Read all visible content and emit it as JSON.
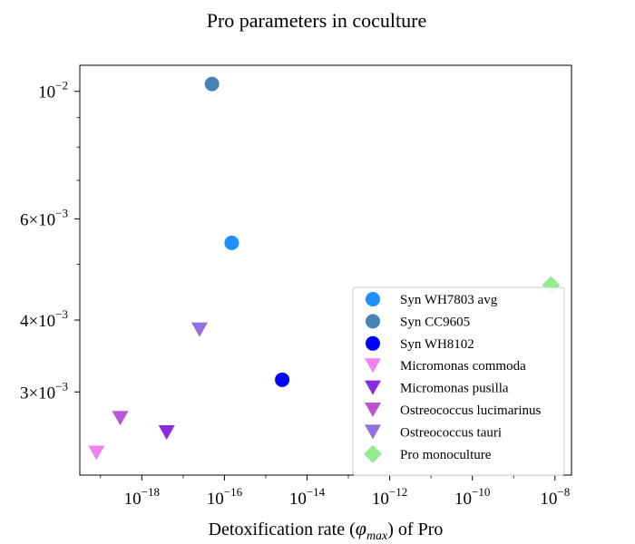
{
  "chart_data": {
    "type": "scatter",
    "title": "Pro parameters in coculture",
    "xlabel": {
      "prefix": "Detoxification rate (",
      "symbol": "φ",
      "subscript": "max",
      "suffix": ") of Pro"
    },
    "ylabel": "",
    "x_scale": "log",
    "y_scale": "log",
    "xlim_exponent": [
      -19.5,
      -7.6
    ],
    "ylim": [
      0.00215,
      0.0111
    ],
    "x_ticks": [
      {
        "exp": -18,
        "base": "10",
        "sup": "−18"
      },
      {
        "exp": -16,
        "base": "10",
        "sup": "−16"
      },
      {
        "exp": -14,
        "base": "10",
        "sup": "−14"
      },
      {
        "exp": -12,
        "base": "10",
        "sup": "−12"
      },
      {
        "exp": -10,
        "base": "10",
        "sup": "−10"
      },
      {
        "exp": -8,
        "base": "10",
        "sup": "−8"
      }
    ],
    "y_ticks": [
      {
        "value": 0.01,
        "mant": "",
        "base": "10",
        "sup": "−2"
      },
      {
        "value": 0.006,
        "mant": "6×",
        "base": "10",
        "sup": "−3"
      },
      {
        "value": 0.004,
        "mant": "4×",
        "base": "10",
        "sup": "−3"
      },
      {
        "value": 0.003,
        "mant": "3×",
        "base": "10",
        "sup": "−3"
      }
    ],
    "y_minor_ticks": [
      0.009,
      0.008,
      0.007,
      0.005
    ],
    "legend": {
      "position": "lower-right"
    },
    "series": [
      {
        "name": "Syn WH7803 avg",
        "marker": "circle",
        "color": "#1E90FF",
        "points": [
          {
            "x": 1.5e-16,
            "y": 0.00545
          }
        ]
      },
      {
        "name": "Syn CC9605",
        "marker": "circle",
        "color": "#4682B4",
        "points": [
          {
            "x": 5e-17,
            "y": 0.0103
          }
        ]
      },
      {
        "name": "Syn WH8102",
        "marker": "circle",
        "color": "#0000FF",
        "points": [
          {
            "x": 2.5e-15,
            "y": 0.00315
          }
        ]
      },
      {
        "name": "Micromonas commoda",
        "marker": "triangle-down",
        "color": "#EE82EE",
        "points": [
          {
            "x": 8e-20,
            "y": 0.00235
          }
        ]
      },
      {
        "name": "Micromonas pusilla",
        "marker": "triangle-down",
        "color": "#8A2BE2",
        "points": [
          {
            "x": 4e-18,
            "y": 0.00255
          }
        ]
      },
      {
        "name": "Ostreococcus lucimarinus",
        "marker": "triangle-down",
        "color": "#BA55D3",
        "points": [
          {
            "x": 3e-19,
            "y": 0.0027
          }
        ]
      },
      {
        "name": "Ostreococcus tauri",
        "marker": "triangle-down",
        "color": "#9370DB",
        "points": [
          {
            "x": 2.5e-17,
            "y": 0.00385
          }
        ]
      },
      {
        "name": "Pro monoculture",
        "marker": "diamond",
        "color": "#90EE90",
        "points": [
          {
            "x": 8e-09,
            "y": 0.0046
          }
        ]
      }
    ]
  }
}
